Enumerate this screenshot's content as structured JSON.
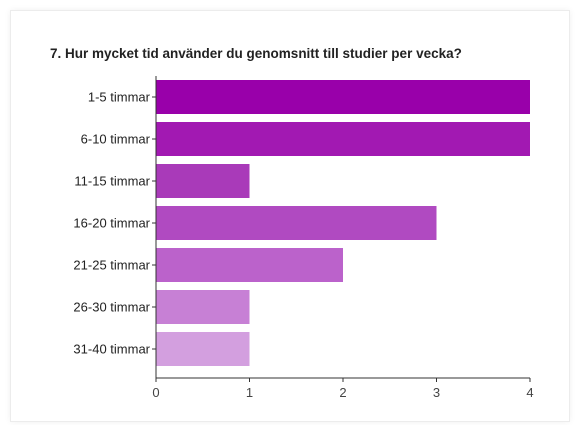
{
  "chart_data": {
    "type": "bar",
    "orientation": "horizontal",
    "title": "7. Hur mycket tid använder du genomsnitt till studier per vecka?",
    "xlabel": "",
    "ylabel": "",
    "categories": [
      "1-5 timmar",
      "6-10 timmar",
      "11-15 timmar",
      "16-20 timmar",
      "21-25 timmar",
      "26-30 timmar",
      "31-40 timmar"
    ],
    "values": [
      4,
      4,
      1,
      3,
      2,
      1,
      1
    ],
    "colors": [
      "#9900aa",
      "#a219b2",
      "#a93ab9",
      "#b04ac1",
      "#bb62cb",
      "#c780d5",
      "#d39fdf"
    ],
    "xlim": [
      0,
      4
    ],
    "xticks": [
      0,
      1,
      2,
      3,
      4
    ],
    "grid": false,
    "legend": "none"
  }
}
